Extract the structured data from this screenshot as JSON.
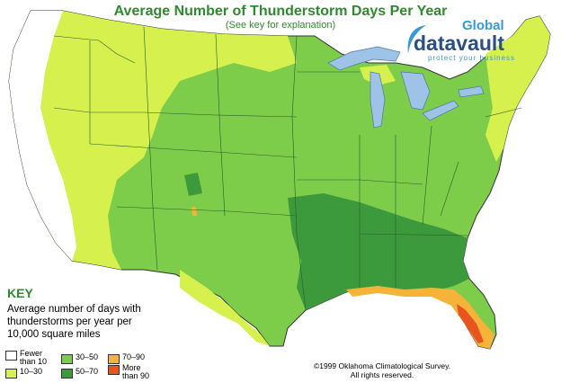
{
  "header": {
    "title": "Average Number of Thunderstorm Days Per Year",
    "subtitle": "(See key for explanation)"
  },
  "logo": {
    "line1": "Global",
    "line2": "datavault",
    "tagline": "protect your business"
  },
  "key": {
    "title": "KEY",
    "description": "Average number of days with thunderstorms per year per 10,000 square miles",
    "items": [
      {
        "label": "Fewer\nthan 10",
        "color": "#ffffff"
      },
      {
        "label": "10–30",
        "color": "#d6f04e"
      },
      {
        "label": "30–50",
        "color": "#7dcc4a"
      },
      {
        "label": "50–70",
        "color": "#3c9a3c"
      },
      {
        "label": "70–90",
        "color": "#f5b33a"
      },
      {
        "label": "More\nthan 90",
        "color": "#e8531e"
      }
    ]
  },
  "credit": {
    "line1": "©1999 Oklahoma Climatological Survey.",
    "line2": "All rights reserved."
  },
  "colors": {
    "accent": "#2f8a2f",
    "water": "#9ec3e6",
    "border": "#333333"
  }
}
